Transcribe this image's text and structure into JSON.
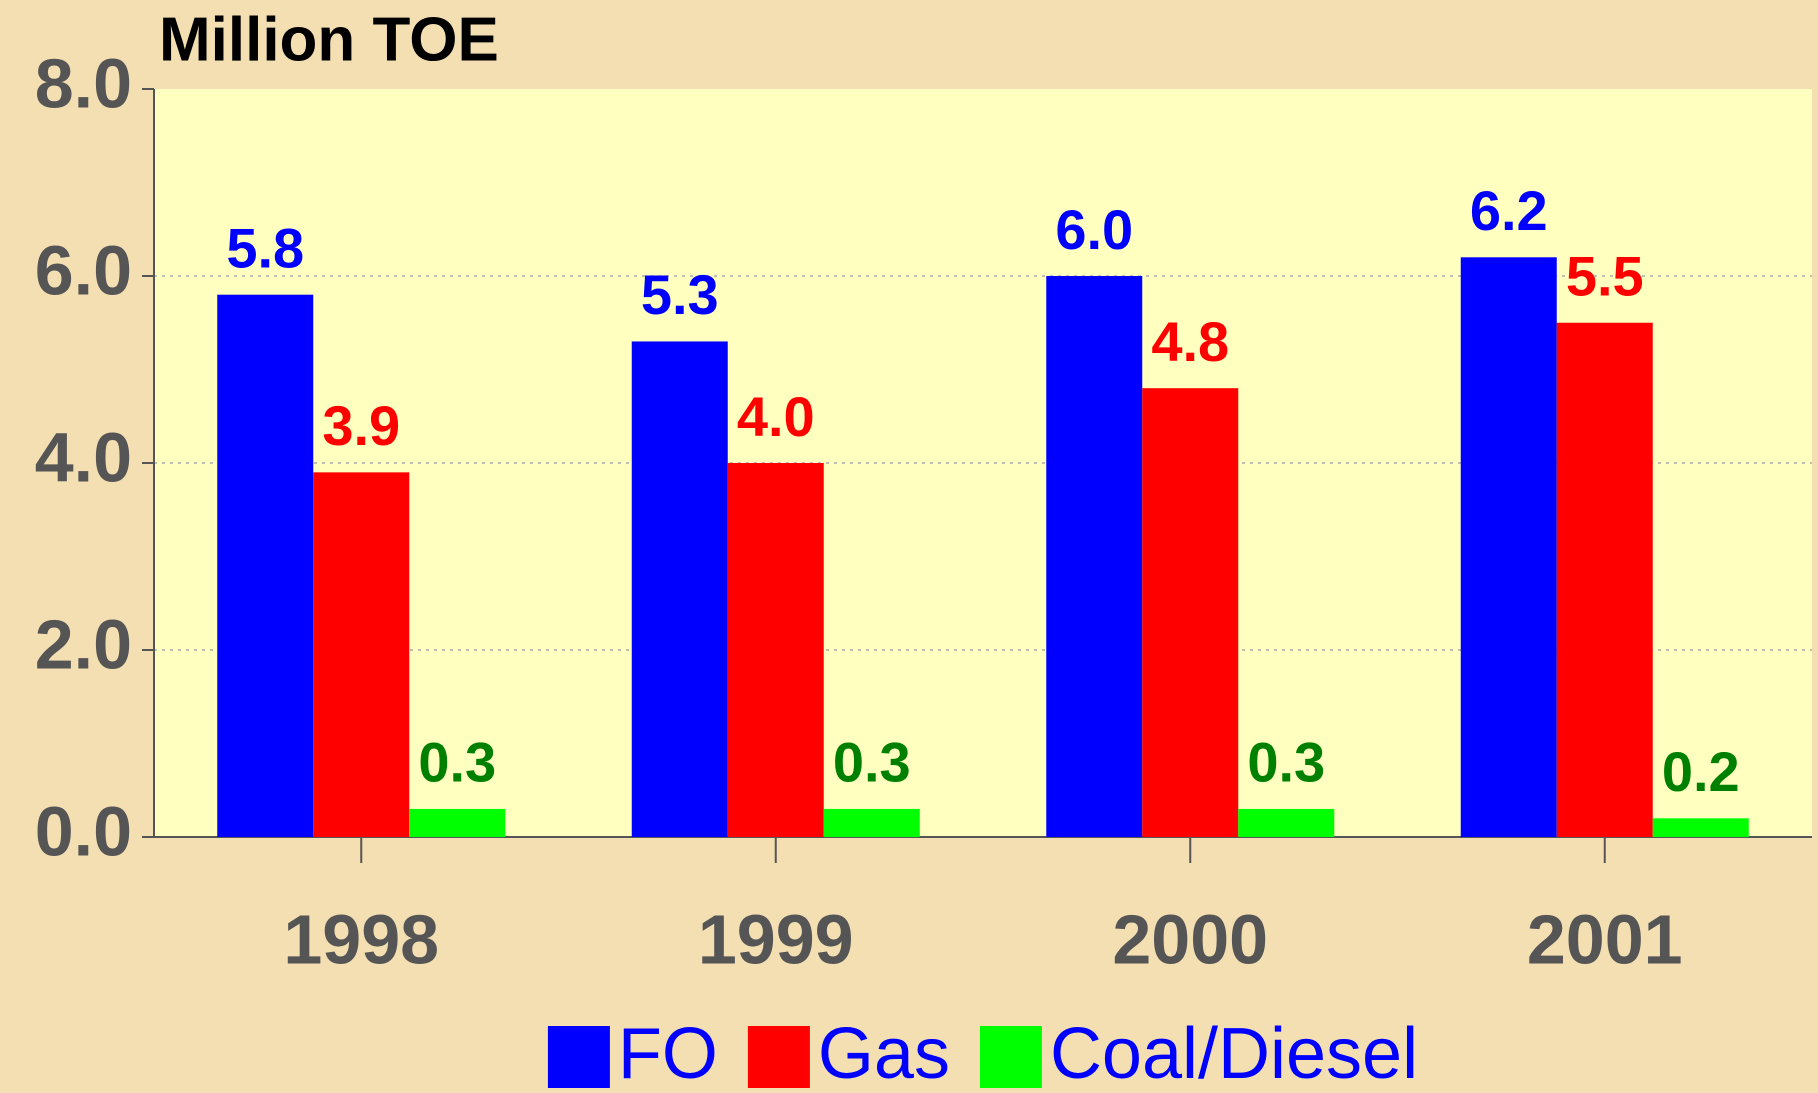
{
  "chart_data": {
    "type": "bar",
    "title": "Million TOE",
    "categories": [
      "1998",
      "1999",
      "2000",
      "2001"
    ],
    "series": [
      {
        "name": "FO",
        "color": "#0000ff",
        "label_color": "#0000ff",
        "values": [
          5.8,
          5.3,
          6.0,
          6.2
        ],
        "value_labels": [
          "5.8",
          "5.3",
          "6.0",
          "6.2"
        ]
      },
      {
        "name": "Gas",
        "color": "#ff0000",
        "label_color": "#ff0000",
        "values": [
          3.9,
          4.0,
          4.8,
          5.5
        ],
        "value_labels": [
          "3.9",
          "4.0",
          "4.8",
          "5.5"
        ]
      },
      {
        "name": "Coal/Diesel",
        "color": "#00ff00",
        "label_color": "#008000",
        "values": [
          0.3,
          0.3,
          0.3,
          0.2
        ],
        "value_labels": [
          "0.3",
          "0.3",
          "0.3",
          "0.2"
        ]
      }
    ],
    "ylim": [
      0,
      8
    ],
    "yticks": [
      {
        "value": 0,
        "label": "0.0"
      },
      {
        "value": 2,
        "label": "2.0"
      },
      {
        "value": 4,
        "label": "4.0"
      },
      {
        "value": 6,
        "label": "6.0"
      },
      {
        "value": 8,
        "label": "8.0"
      }
    ],
    "grid": true,
    "legend": "bottom",
    "legend_color": "#0000ff",
    "plot_background": "#ffffc0"
  }
}
